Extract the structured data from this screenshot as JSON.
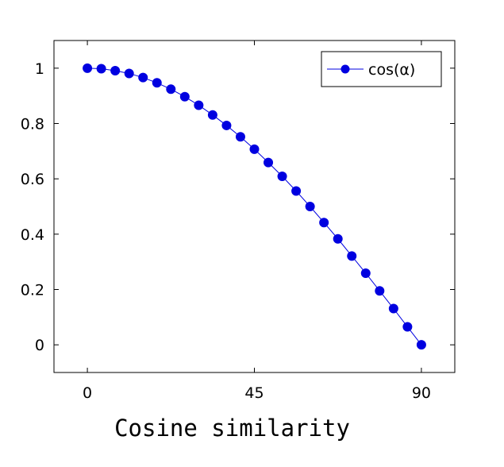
{
  "caption": "Cosine similarity",
  "chart_data": {
    "type": "line",
    "title": "",
    "xlabel": "",
    "ylabel": "",
    "xlim": [
      -9,
      99
    ],
    "ylim": [
      -0.1,
      1.1
    ],
    "xticks": [
      0,
      45,
      90
    ],
    "xtick_labels": [
      "0",
      "45",
      "90"
    ],
    "yticks": [
      0,
      0.2,
      0.4,
      0.6,
      0.8,
      1
    ],
    "ytick_labels": [
      "0",
      "0.2",
      "0.4",
      "0.6",
      "0.8",
      "1"
    ],
    "grid": false,
    "legend_position": "top-right",
    "series": [
      {
        "name": "cos(α)",
        "color": "#0000e0",
        "marker": "circle",
        "x": [
          0,
          3.75,
          7.5,
          11.25,
          15,
          18.75,
          22.5,
          26.25,
          30,
          33.75,
          37.5,
          41.25,
          45,
          48.75,
          52.5,
          56.25,
          60,
          63.75,
          67.5,
          71.25,
          75,
          78.75,
          82.5,
          86.25,
          90
        ],
        "y": [
          1.0,
          0.998,
          0.991,
          0.981,
          0.966,
          0.947,
          0.924,
          0.897,
          0.866,
          0.831,
          0.793,
          0.752,
          0.707,
          0.659,
          0.609,
          0.556,
          0.5,
          0.442,
          0.383,
          0.321,
          0.259,
          0.195,
          0.131,
          0.065,
          0.0
        ]
      }
    ]
  }
}
